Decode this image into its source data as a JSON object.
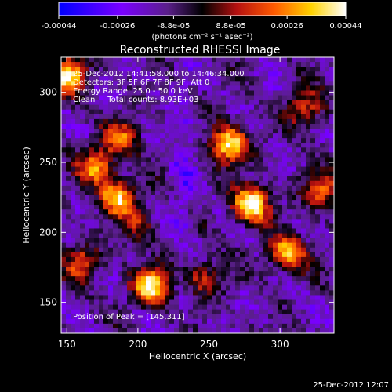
{
  "chart_data": {
    "type": "heatmap",
    "title": "Reconstructed RHESSI Image",
    "xlabel": "Heliocentric X (arcsec)",
    "ylabel": "Heliocentric Y (arcsec)",
    "xlim": [
      146,
      338
    ],
    "ylim": [
      128,
      325
    ],
    "x_ticks": [
      150,
      200,
      250,
      300
    ],
    "y_ticks": [
      150,
      200,
      250,
      300
    ],
    "colorbar": {
      "range": [
        -0.00044,
        0.00044
      ],
      "ticks": [
        -0.00044,
        -0.00026,
        -8.8e-05,
        8.8e-05,
        0.00026,
        0.00044
      ],
      "tick_labels": [
        "-0.00044",
        "-0.00026",
        "-8.8e-05",
        "8.8e-05",
        "0.00026",
        "0.00044"
      ],
      "units": "(photons cm⁻² s⁻¹ asec⁻²)",
      "colormap": [
        "#0000ff",
        "#7a00ff",
        "#5a1f8a",
        "#000000",
        "#b51010",
        "#ff5a00",
        "#ffd200",
        "#ffffff"
      ]
    },
    "annotations": [
      "25-Dec-2012 14:41:58.000 to 14:46:34.000",
      "Detectors: 3F 5F 6F 7F 8F 9F, Att 0",
      "Energy Range: 25.0 - 50.0 keV",
      "Clean     Total counts: 8.93E+03"
    ],
    "peak_label": "Position of Peak = [145,311]",
    "peak": [
      145,
      311
    ],
    "sources": [
      {
        "x": 264,
        "y": 263,
        "level": 0.95
      },
      {
        "x": 280,
        "y": 220,
        "level": 1.0
      },
      {
        "x": 186,
        "y": 225,
        "level": 0.8
      },
      {
        "x": 171,
        "y": 247,
        "level": 0.7
      },
      {
        "x": 209,
        "y": 162,
        "level": 0.95
      },
      {
        "x": 305,
        "y": 185,
        "level": 0.8
      },
      {
        "x": 330,
        "y": 230,
        "level": 0.6
      },
      {
        "x": 188,
        "y": 268,
        "level": 0.55
      },
      {
        "x": 150,
        "y": 312,
        "level": 0.9
      },
      {
        "x": 318,
        "y": 288,
        "level": 0.55
      },
      {
        "x": 160,
        "y": 178,
        "level": 0.5
      },
      {
        "x": 246,
        "y": 168,
        "level": 0.45
      },
      {
        "x": 200,
        "y": 205,
        "level": 0.35
      }
    ],
    "background_level": -0.3
  },
  "footer": {
    "timestamp": "25-Dec-2012 12:07"
  }
}
